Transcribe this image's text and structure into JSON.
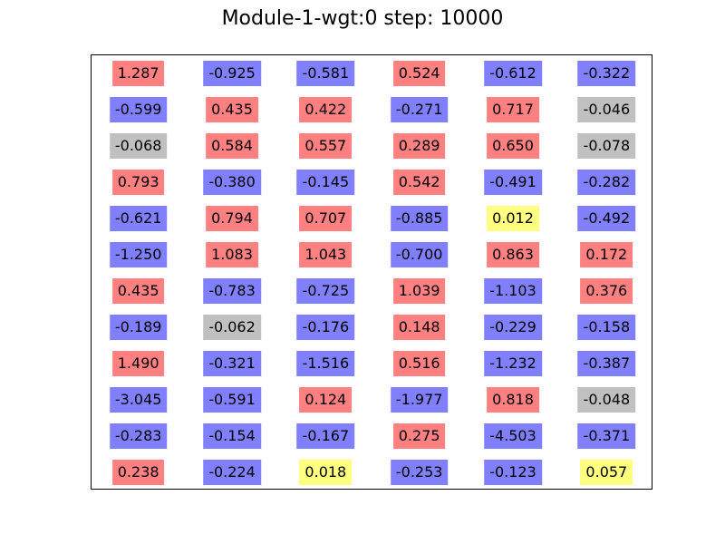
{
  "chart_data": {
    "type": "table",
    "title": "Module-1-wgt:0 step: 10000",
    "rows": [
      [
        1.287,
        -0.925,
        -0.581,
        0.524,
        -0.612,
        -0.322
      ],
      [
        -0.599,
        0.435,
        0.422,
        -0.271,
        0.717,
        -0.046
      ],
      [
        -0.068,
        0.584,
        0.557,
        0.289,
        0.65,
        -0.078
      ],
      [
        0.793,
        -0.38,
        -0.145,
        0.542,
        -0.491,
        -0.282
      ],
      [
        -0.621,
        0.794,
        0.707,
        -0.885,
        0.012,
        -0.492
      ],
      [
        -1.25,
        1.083,
        1.043,
        -0.7,
        0.863,
        0.172
      ],
      [
        0.435,
        -0.783,
        -0.725,
        1.039,
        -1.103,
        0.376
      ],
      [
        -0.189,
        -0.062,
        -0.176,
        0.148,
        -0.229,
        -0.158
      ],
      [
        1.49,
        -0.321,
        -1.516,
        0.516,
        -1.232,
        -0.387
      ],
      [
        -3.045,
        -0.591,
        0.124,
        -1.977,
        0.818,
        -0.048
      ],
      [
        -0.283,
        -0.154,
        -0.167,
        0.275,
        -4.503,
        -0.371
      ],
      [
        0.238,
        -0.224,
        0.018,
        -0.253,
        -0.123,
        0.057
      ]
    ],
    "colors": {
      "positive": "#ff8080",
      "negative": "#8080ff",
      "near_zero_negative": "#c0c0c0",
      "near_zero_positive": "#ffff80"
    }
  }
}
